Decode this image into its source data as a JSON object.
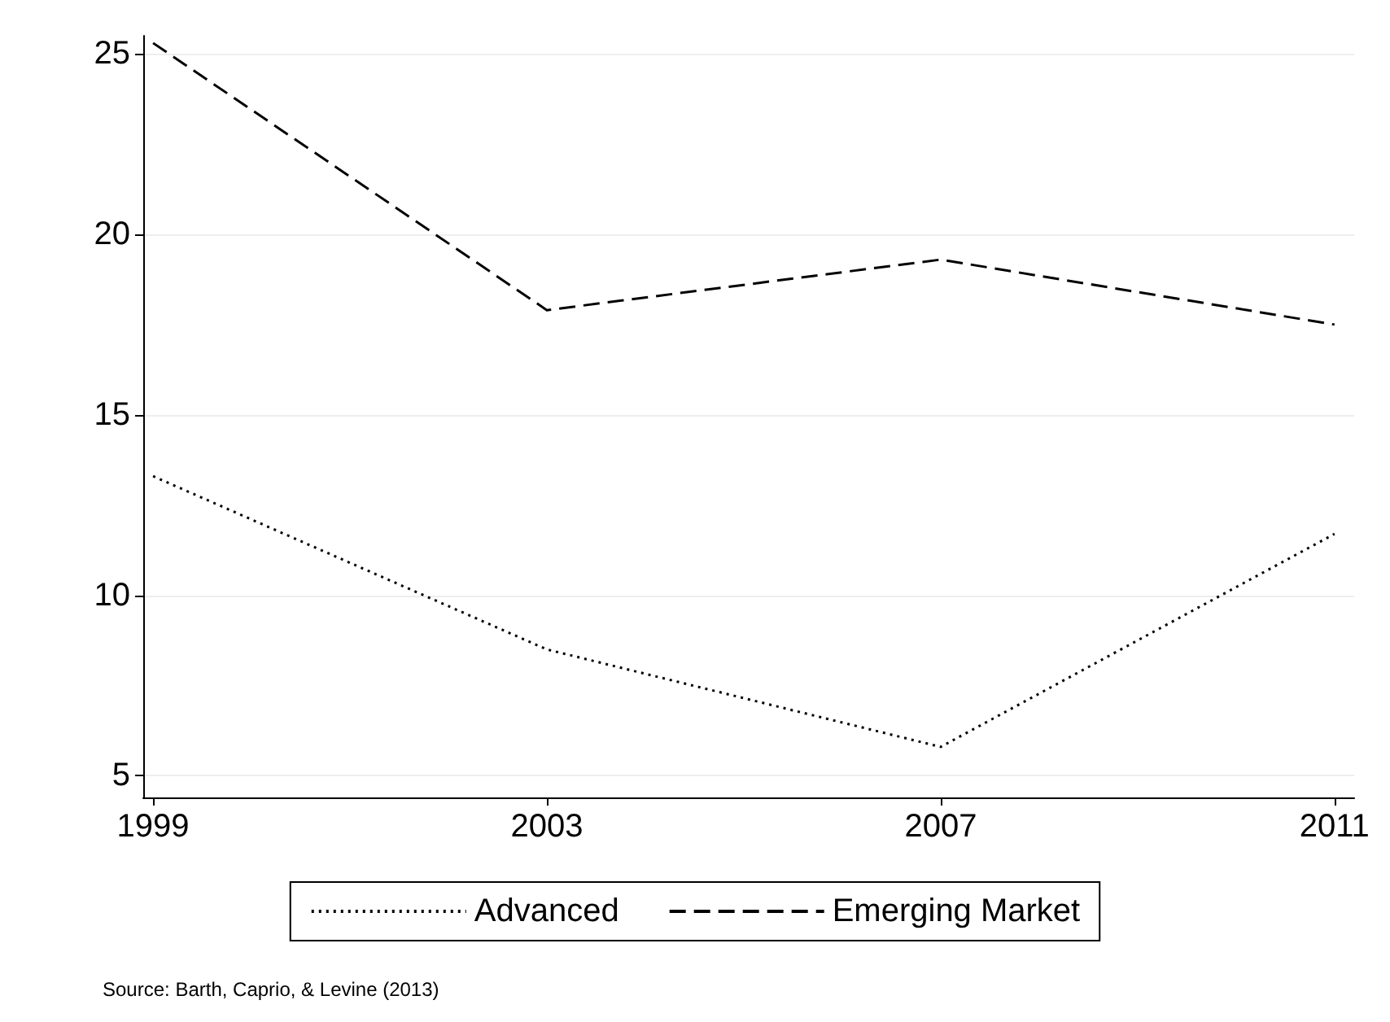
{
  "chart_data": {
    "type": "line",
    "x": [
      1999,
      2003,
      2007,
      2011
    ],
    "series": [
      {
        "name": "Advanced",
        "color": "#000000",
        "line_style": "dotted",
        "values": [
          13.3,
          8.5,
          5.8,
          11.7
        ]
      },
      {
        "name": "Emerging Market",
        "color": "#000000",
        "line_style": "dashed",
        "values": [
          25.3,
          17.9,
          19.3,
          17.5
        ]
      }
    ],
    "xlim": [
      1998.9,
      2011.2
    ],
    "xticks": [
      1999,
      2003,
      2007,
      2011
    ],
    "ylim": [
      4.4,
      25.5
    ],
    "yticks": [
      5,
      10,
      15,
      20,
      25
    ],
    "grid": "y",
    "legend": "bottom",
    "marker": "none",
    "annotations": [
      "Source: Barth, Caprio, & Levine (2013)"
    ]
  }
}
